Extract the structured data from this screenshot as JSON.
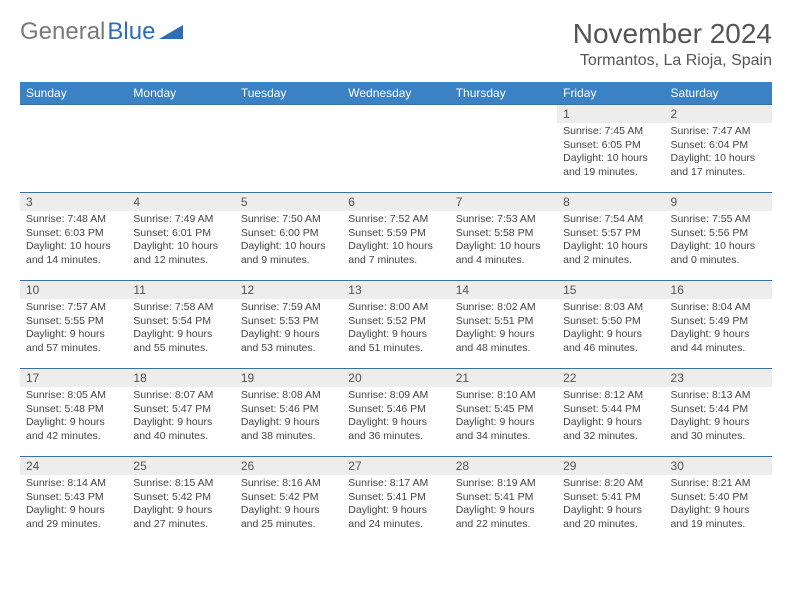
{
  "logo": {
    "text_gray": "General",
    "text_blue": "Blue"
  },
  "title": "November 2024",
  "location": "Tormantos, La Rioja, Spain",
  "colors": {
    "header_bg": "#3b82c4",
    "header_text": "#ffffff",
    "cell_border": "#3b6fa8",
    "daynum_bg": "#ededed",
    "text": "#444444",
    "logo_gray": "#7a7a7a",
    "logo_blue": "#2d6fb6"
  },
  "weekdays": [
    "Sunday",
    "Monday",
    "Tuesday",
    "Wednesday",
    "Thursday",
    "Friday",
    "Saturday"
  ],
  "weeks": [
    [
      null,
      null,
      null,
      null,
      null,
      {
        "n": "1",
        "sr": "7:45 AM",
        "ss": "6:05 PM",
        "dl": "10 hours and 19 minutes."
      },
      {
        "n": "2",
        "sr": "7:47 AM",
        "ss": "6:04 PM",
        "dl": "10 hours and 17 minutes."
      }
    ],
    [
      {
        "n": "3",
        "sr": "7:48 AM",
        "ss": "6:03 PM",
        "dl": "10 hours and 14 minutes."
      },
      {
        "n": "4",
        "sr": "7:49 AM",
        "ss": "6:01 PM",
        "dl": "10 hours and 12 minutes."
      },
      {
        "n": "5",
        "sr": "7:50 AM",
        "ss": "6:00 PM",
        "dl": "10 hours and 9 minutes."
      },
      {
        "n": "6",
        "sr": "7:52 AM",
        "ss": "5:59 PM",
        "dl": "10 hours and 7 minutes."
      },
      {
        "n": "7",
        "sr": "7:53 AM",
        "ss": "5:58 PM",
        "dl": "10 hours and 4 minutes."
      },
      {
        "n": "8",
        "sr": "7:54 AM",
        "ss": "5:57 PM",
        "dl": "10 hours and 2 minutes."
      },
      {
        "n": "9",
        "sr": "7:55 AM",
        "ss": "5:56 PM",
        "dl": "10 hours and 0 minutes."
      }
    ],
    [
      {
        "n": "10",
        "sr": "7:57 AM",
        "ss": "5:55 PM",
        "dl": "9 hours and 57 minutes."
      },
      {
        "n": "11",
        "sr": "7:58 AM",
        "ss": "5:54 PM",
        "dl": "9 hours and 55 minutes."
      },
      {
        "n": "12",
        "sr": "7:59 AM",
        "ss": "5:53 PM",
        "dl": "9 hours and 53 minutes."
      },
      {
        "n": "13",
        "sr": "8:00 AM",
        "ss": "5:52 PM",
        "dl": "9 hours and 51 minutes."
      },
      {
        "n": "14",
        "sr": "8:02 AM",
        "ss": "5:51 PM",
        "dl": "9 hours and 48 minutes."
      },
      {
        "n": "15",
        "sr": "8:03 AM",
        "ss": "5:50 PM",
        "dl": "9 hours and 46 minutes."
      },
      {
        "n": "16",
        "sr": "8:04 AM",
        "ss": "5:49 PM",
        "dl": "9 hours and 44 minutes."
      }
    ],
    [
      {
        "n": "17",
        "sr": "8:05 AM",
        "ss": "5:48 PM",
        "dl": "9 hours and 42 minutes."
      },
      {
        "n": "18",
        "sr": "8:07 AM",
        "ss": "5:47 PM",
        "dl": "9 hours and 40 minutes."
      },
      {
        "n": "19",
        "sr": "8:08 AM",
        "ss": "5:46 PM",
        "dl": "9 hours and 38 minutes."
      },
      {
        "n": "20",
        "sr": "8:09 AM",
        "ss": "5:46 PM",
        "dl": "9 hours and 36 minutes."
      },
      {
        "n": "21",
        "sr": "8:10 AM",
        "ss": "5:45 PM",
        "dl": "9 hours and 34 minutes."
      },
      {
        "n": "22",
        "sr": "8:12 AM",
        "ss": "5:44 PM",
        "dl": "9 hours and 32 minutes."
      },
      {
        "n": "23",
        "sr": "8:13 AM",
        "ss": "5:44 PM",
        "dl": "9 hours and 30 minutes."
      }
    ],
    [
      {
        "n": "24",
        "sr": "8:14 AM",
        "ss": "5:43 PM",
        "dl": "9 hours and 29 minutes."
      },
      {
        "n": "25",
        "sr": "8:15 AM",
        "ss": "5:42 PM",
        "dl": "9 hours and 27 minutes."
      },
      {
        "n": "26",
        "sr": "8:16 AM",
        "ss": "5:42 PM",
        "dl": "9 hours and 25 minutes."
      },
      {
        "n": "27",
        "sr": "8:17 AM",
        "ss": "5:41 PM",
        "dl": "9 hours and 24 minutes."
      },
      {
        "n": "28",
        "sr": "8:19 AM",
        "ss": "5:41 PM",
        "dl": "9 hours and 22 minutes."
      },
      {
        "n": "29",
        "sr": "8:20 AM",
        "ss": "5:41 PM",
        "dl": "9 hours and 20 minutes."
      },
      {
        "n": "30",
        "sr": "8:21 AM",
        "ss": "5:40 PM",
        "dl": "9 hours and 19 minutes."
      }
    ]
  ],
  "labels": {
    "sunrise": "Sunrise: ",
    "sunset": "Sunset: ",
    "daylight": "Daylight: "
  }
}
